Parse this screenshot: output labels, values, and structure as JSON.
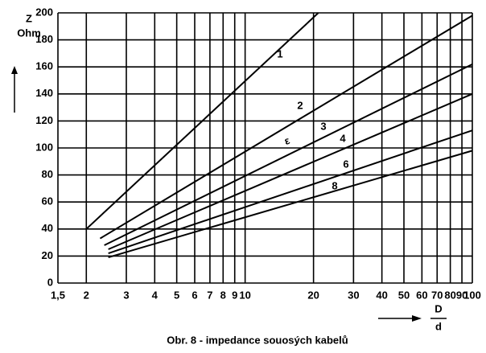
{
  "chart_data": {
    "type": "line",
    "title": "Obr. 8 - impedance souosých kabelů",
    "y_label": "Z",
    "y_unit": "Ohm",
    "x_label_top": "D",
    "x_label_bottom": "d",
    "annotation": "ε",
    "log_x": true,
    "grid": true,
    "color": "#000000",
    "xlim": [
      1.5,
      100
    ],
    "xticks": [
      {
        "value": 1.5,
        "label": "1,5"
      },
      2,
      3,
      4,
      5,
      6,
      7,
      8,
      9,
      10,
      20,
      30,
      40,
      50,
      60,
      70,
      80,
      90,
      100
    ],
    "ylim": [
      0,
      200
    ],
    "yticks": [
      0,
      20,
      40,
      60,
      80,
      100,
      120,
      140,
      160,
      180,
      200
    ],
    "series": [
      {
        "name": "1",
        "x": [
          2,
          21
        ],
        "values": [
          40,
          200
        ]
      },
      {
        "name": "2",
        "x": [
          2.3,
          100
        ],
        "values": [
          33,
          198
        ]
      },
      {
        "name": "3",
        "x": [
          2.4,
          100
        ],
        "values": [
          28,
          162
        ]
      },
      {
        "name": "4",
        "x": [
          2.5,
          100
        ],
        "values": [
          25,
          140
        ]
      },
      {
        "name": "6",
        "x": [
          2.5,
          100
        ],
        "values": [
          22,
          113
        ]
      },
      {
        "name": "8",
        "x": [
          2.5,
          100
        ],
        "values": [
          19,
          98
        ]
      }
    ]
  }
}
